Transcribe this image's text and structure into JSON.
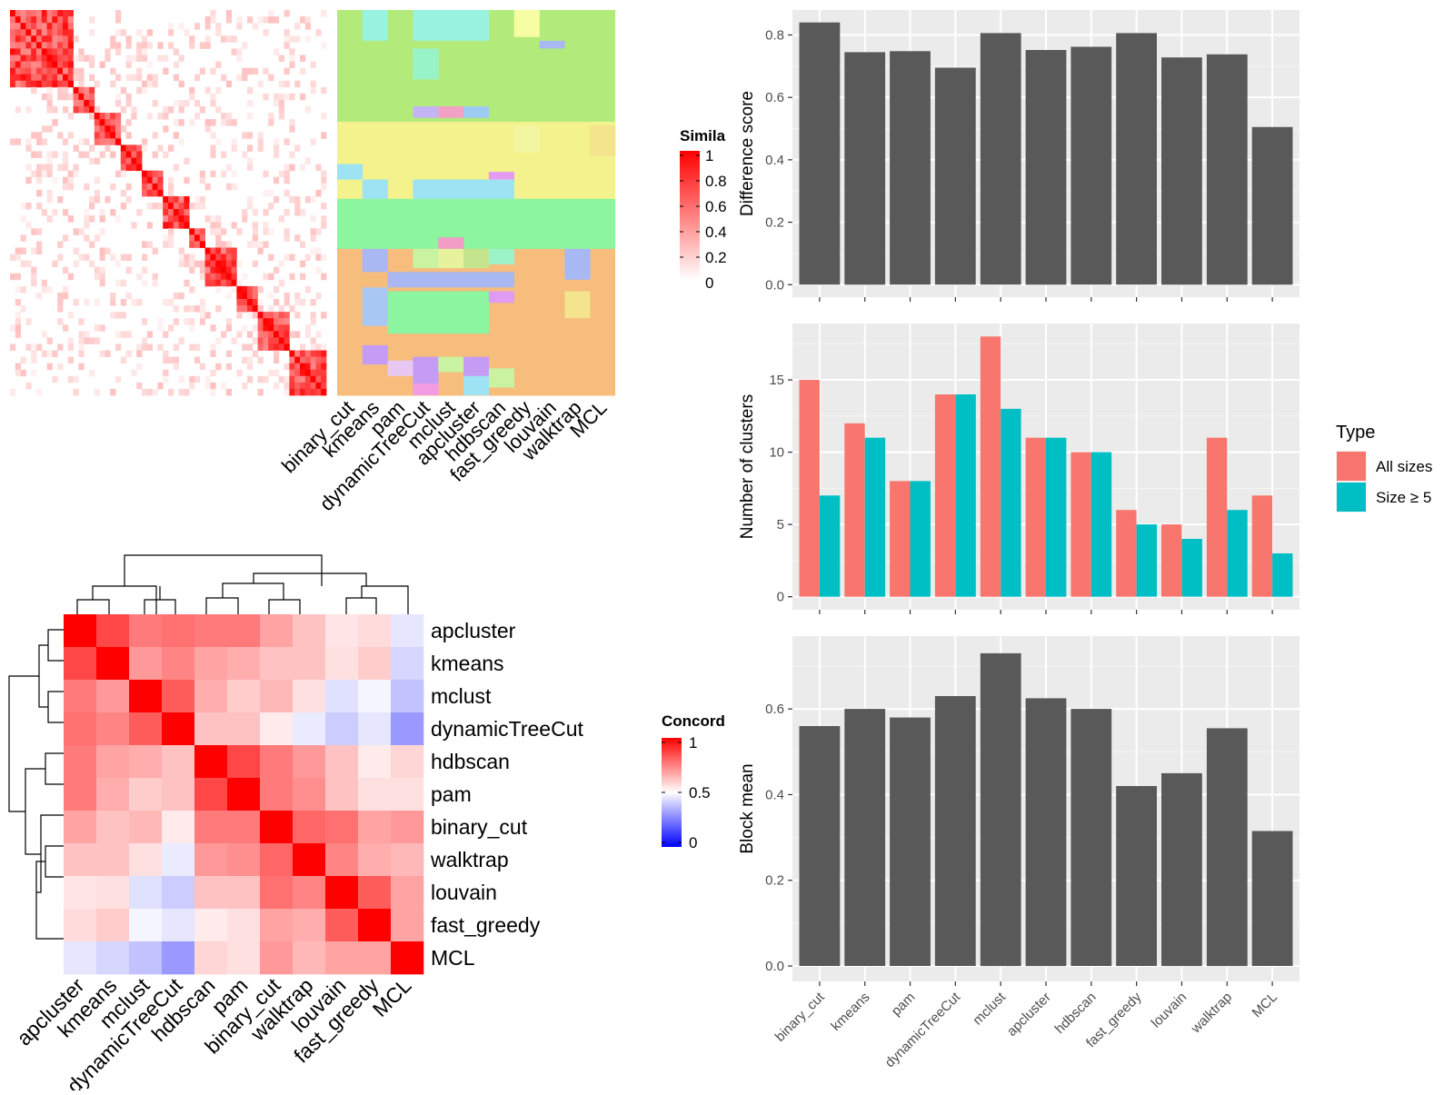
{
  "panels": {
    "similarity_heatmap": {
      "legend_title": "Simila",
      "legend_ticks": [
        "1",
        "0.8",
        "0.6",
        "0.4",
        "0.2",
        "0"
      ],
      "methods": [
        "binary_cut",
        "kmeans",
        "pam",
        "dynamicTreeCut",
        "mclust",
        "apcluster",
        "hdbscan",
        "fast_greedy",
        "louvain",
        "walktrap",
        "MCL"
      ]
    },
    "concordance_heatmap": {
      "legend_title": "Concord",
      "legend_ticks": [
        "1",
        "0.5",
        "0"
      ]
    }
  },
  "chart_data": [
    {
      "type": "heatmap",
      "name": "similarity",
      "legend_title": "Simila",
      "scale_range": [
        0,
        1
      ],
      "colors": {
        "low": "#ffffff",
        "high": "#ff0000"
      },
      "columns": [
        "binary_cut",
        "kmeans",
        "pam",
        "dynamicTreeCut",
        "mclust",
        "apcluster",
        "hdbscan",
        "fast_greedy",
        "louvain",
        "walktrap",
        "MCL"
      ]
    },
    {
      "type": "heatmap",
      "name": "concordance",
      "legend_title": "Concord",
      "scale_range": [
        0,
        1
      ],
      "colors": {
        "low": "#0000ff",
        "mid": "#ffffff",
        "high": "#ff0000"
      },
      "rows": [
        "apcluster",
        "kmeans",
        "mclust",
        "dynamicTreeCut",
        "hdbscan",
        "pam",
        "binary_cut",
        "walktrap",
        "louvain",
        "fast_greedy",
        "MCL"
      ],
      "columns": [
        "apcluster",
        "kmeans",
        "mclust",
        "dynamicTreeCut",
        "hdbscan",
        "pam",
        "binary_cut",
        "walktrap",
        "louvain",
        "fast_greedy",
        "MCL"
      ],
      "values": [
        [
          1.0,
          0.86,
          0.76,
          0.78,
          0.76,
          0.76,
          0.68,
          0.62,
          0.55,
          0.57,
          0.45
        ],
        [
          0.86,
          1.0,
          0.7,
          0.74,
          0.68,
          0.66,
          0.62,
          0.62,
          0.56,
          0.6,
          0.42
        ],
        [
          0.76,
          0.7,
          1.0,
          0.82,
          0.66,
          0.6,
          0.64,
          0.56,
          0.44,
          0.48,
          0.38
        ],
        [
          0.78,
          0.74,
          0.82,
          1.0,
          0.62,
          0.62,
          0.54,
          0.46,
          0.4,
          0.45,
          0.3
        ],
        [
          0.76,
          0.68,
          0.66,
          0.62,
          1.0,
          0.86,
          0.76,
          0.7,
          0.62,
          0.54,
          0.58
        ],
        [
          0.76,
          0.66,
          0.6,
          0.62,
          0.86,
          1.0,
          0.76,
          0.72,
          0.62,
          0.56,
          0.56
        ],
        [
          0.68,
          0.62,
          0.64,
          0.54,
          0.76,
          0.76,
          1.0,
          0.8,
          0.78,
          0.68,
          0.7
        ],
        [
          0.62,
          0.62,
          0.56,
          0.46,
          0.7,
          0.72,
          0.8,
          1.0,
          0.74,
          0.66,
          0.64
        ],
        [
          0.55,
          0.56,
          0.44,
          0.4,
          0.62,
          0.62,
          0.78,
          0.74,
          1.0,
          0.82,
          0.68
        ],
        [
          0.57,
          0.6,
          0.48,
          0.45,
          0.54,
          0.56,
          0.68,
          0.66,
          0.82,
          1.0,
          0.68
        ],
        [
          0.45,
          0.42,
          0.38,
          0.3,
          0.58,
          0.56,
          0.7,
          0.64,
          0.68,
          0.68,
          1.0
        ]
      ]
    },
    {
      "type": "bar",
      "name": "difference_score",
      "categories": [
        "binary_cut",
        "kmeans",
        "pam",
        "dynamicTreeCut",
        "mclust",
        "apcluster",
        "hdbscan",
        "fast_greedy",
        "louvain",
        "walktrap",
        "MCL"
      ],
      "values": [
        0.84,
        0.745,
        0.748,
        0.695,
        0.806,
        0.752,
        0.762,
        0.806,
        0.728,
        0.738,
        0.505
      ],
      "ylabel": "Difference score",
      "ylim": [
        -0.04,
        0.88
      ],
      "yticks": [
        "0.0",
        "0.2",
        "0.4",
        "0.6",
        "0.8"
      ],
      "bar_color": "#595959",
      "grid": true
    },
    {
      "type": "bar",
      "name": "number_of_clusters",
      "categories": [
        "binary_cut",
        "kmeans",
        "pam",
        "dynamicTreeCut",
        "mclust",
        "apcluster",
        "hdbscan",
        "fast_greedy",
        "louvain",
        "walktrap",
        "MCL"
      ],
      "series": [
        {
          "name": "All sizes",
          "values": [
            15,
            12,
            8,
            14,
            18,
            11,
            10,
            6,
            5,
            11,
            7
          ],
          "color": "#F8766D"
        },
        {
          "name": "Size ≥ 5",
          "values": [
            7,
            11,
            8,
            14,
            13,
            11,
            10,
            5,
            4,
            6,
            3
          ],
          "color": "#00BFC4"
        }
      ],
      "ylabel": "Number of clusters",
      "ylim": [
        -0.9,
        18.9
      ],
      "yticks": [
        "0",
        "5",
        "10",
        "15"
      ],
      "legend_title": "Type",
      "legend_position": "right",
      "grid": true
    },
    {
      "type": "bar",
      "name": "block_mean",
      "categories": [
        "binary_cut",
        "kmeans",
        "pam",
        "dynamicTreeCut",
        "mclust",
        "apcluster",
        "hdbscan",
        "fast_greedy",
        "louvain",
        "walktrap",
        "MCL"
      ],
      "values": [
        0.56,
        0.6,
        0.58,
        0.63,
        0.73,
        0.625,
        0.6,
        0.42,
        0.45,
        0.555,
        0.315
      ],
      "ylabel": "Block mean",
      "ylim": [
        -0.036,
        0.77
      ],
      "yticks": [
        "0.0",
        "0.2",
        "0.4",
        "0.6"
      ],
      "bar_color": "#595959",
      "grid": true
    }
  ]
}
